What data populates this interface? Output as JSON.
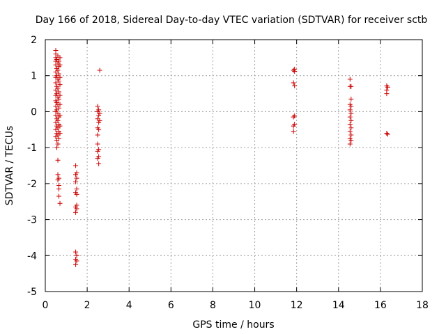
{
  "chart_data": {
    "type": "scatter",
    "title": "Day 166 of 2018, Sidereal Day-to-day VTEC variation (SDTVAR) for receiver sctb",
    "xlabel": "GPS time / hours",
    "ylabel": "SDTVAR / TECUs",
    "xlim": [
      0,
      18
    ],
    "ylim": [
      -5,
      2
    ],
    "xticks": [
      0,
      2,
      4,
      6,
      8,
      10,
      12,
      14,
      16,
      18
    ],
    "yticks": [
      -5,
      -4,
      -3,
      -2,
      -1,
      0,
      1,
      2
    ],
    "grid": true,
    "marker": "+",
    "colors": {
      "points": "#cc0000",
      "grid": "#a0a0a0",
      "axes": "#000000"
    },
    "series": [
      {
        "name": "SDTVAR",
        "points": [
          [
            0.5,
            1.7
          ],
          [
            0.5,
            1.6
          ],
          [
            0.5,
            1.5
          ],
          [
            0.5,
            1.4
          ],
          [
            0.5,
            1.3
          ],
          [
            0.5,
            1.1
          ],
          [
            0.5,
            0.95
          ],
          [
            0.5,
            0.8
          ],
          [
            0.5,
            0.6
          ],
          [
            0.5,
            0.45
          ],
          [
            0.5,
            0.3
          ],
          [
            0.5,
            0.15
          ],
          [
            0.5,
            0.0
          ],
          [
            0.5,
            -0.1
          ],
          [
            0.5,
            -0.3
          ],
          [
            0.5,
            -0.5
          ],
          [
            0.5,
            -0.7
          ],
          [
            0.55,
            1.45
          ],
          [
            0.55,
            1.2
          ],
          [
            0.55,
            1.0
          ],
          [
            0.55,
            0.7
          ],
          [
            0.55,
            0.5
          ],
          [
            0.55,
            0.25
          ],
          [
            0.55,
            0.05
          ],
          [
            0.55,
            -0.2
          ],
          [
            0.55,
            -0.4
          ],
          [
            0.55,
            -0.6
          ],
          [
            0.55,
            -0.8
          ],
          [
            0.55,
            -1.0
          ],
          [
            0.6,
            1.55
          ],
          [
            0.6,
            1.35
          ],
          [
            0.6,
            1.15
          ],
          [
            0.6,
            0.9
          ],
          [
            0.6,
            0.65
          ],
          [
            0.6,
            0.4
          ],
          [
            0.6,
            0.2
          ],
          [
            0.6,
            -0.05
          ],
          [
            0.6,
            -0.25
          ],
          [
            0.6,
            -0.45
          ],
          [
            0.6,
            -0.65
          ],
          [
            0.6,
            -0.9
          ],
          [
            0.6,
            -1.35
          ],
          [
            0.6,
            -1.75
          ],
          [
            0.6,
            -1.9
          ],
          [
            0.65,
            1.4
          ],
          [
            0.65,
            1.25
          ],
          [
            0.65,
            1.05
          ],
          [
            0.65,
            0.85
          ],
          [
            0.65,
            0.55
          ],
          [
            0.65,
            0.35
          ],
          [
            0.65,
            0.1
          ],
          [
            0.65,
            -0.15
          ],
          [
            0.65,
            -0.35
          ],
          [
            0.65,
            -0.55
          ],
          [
            0.65,
            -0.75
          ],
          [
            0.65,
            -1.85
          ],
          [
            0.65,
            -2.05
          ],
          [
            0.65,
            -2.15
          ],
          [
            0.65,
            -2.35
          ],
          [
            0.7,
            1.5
          ],
          [
            0.7,
            1.3
          ],
          [
            0.7,
            0.95
          ],
          [
            0.7,
            0.75
          ],
          [
            0.7,
            0.45
          ],
          [
            0.7,
            0.2
          ],
          [
            0.7,
            -0.1
          ],
          [
            0.7,
            -0.4
          ],
          [
            0.7,
            -0.6
          ],
          [
            0.7,
            -2.55
          ],
          [
            1.45,
            -1.5
          ],
          [
            1.45,
            -1.75
          ],
          [
            1.45,
            -1.95
          ],
          [
            1.45,
            -2.25
          ],
          [
            1.45,
            -2.65
          ],
          [
            1.45,
            -2.8
          ],
          [
            1.45,
            -3.9
          ],
          [
            1.45,
            -4.1
          ],
          [
            1.45,
            -4.25
          ],
          [
            1.5,
            -1.7
          ],
          [
            1.5,
            -1.85
          ],
          [
            1.5,
            -2.15
          ],
          [
            1.5,
            -2.3
          ],
          [
            1.5,
            -2.6
          ],
          [
            1.5,
            -2.7
          ],
          [
            1.5,
            -4.0
          ],
          [
            1.5,
            -4.15
          ],
          [
            2.5,
            0.15
          ],
          [
            2.5,
            0.0
          ],
          [
            2.5,
            -0.2
          ],
          [
            2.5,
            -0.45
          ],
          [
            2.5,
            -0.65
          ],
          [
            2.5,
            -0.9
          ],
          [
            2.5,
            -1.1
          ],
          [
            2.5,
            -1.3
          ],
          [
            2.55,
            0.05
          ],
          [
            2.55,
            -0.1
          ],
          [
            2.55,
            -0.3
          ],
          [
            2.55,
            -0.5
          ],
          [
            2.55,
            -1.05
          ],
          [
            2.55,
            -1.25
          ],
          [
            2.55,
            -1.45
          ],
          [
            2.6,
            1.15
          ],
          [
            2.6,
            -0.05
          ],
          [
            2.6,
            -0.25
          ],
          [
            11.85,
            1.15
          ],
          [
            11.85,
            0.8
          ],
          [
            11.85,
            -0.15
          ],
          [
            11.85,
            -0.4
          ],
          [
            11.85,
            -0.55
          ],
          [
            11.9,
            1.18
          ],
          [
            11.9,
            1.12
          ],
          [
            11.9,
            0.72
          ],
          [
            11.9,
            -0.12
          ],
          [
            11.9,
            -0.35
          ],
          [
            14.55,
            0.9
          ],
          [
            14.55,
            0.7
          ],
          [
            14.55,
            0.2
          ],
          [
            14.55,
            0.05
          ],
          [
            14.55,
            -0.15
          ],
          [
            14.55,
            -0.35
          ],
          [
            14.55,
            -0.55
          ],
          [
            14.55,
            -0.75
          ],
          [
            14.55,
            -0.9
          ],
          [
            14.6,
            0.7
          ],
          [
            14.6,
            0.35
          ],
          [
            14.6,
            0.15
          ],
          [
            14.6,
            -0.05
          ],
          [
            14.6,
            -0.25
          ],
          [
            14.6,
            -0.45
          ],
          [
            14.6,
            -0.65
          ],
          [
            14.6,
            -0.8
          ],
          [
            16.3,
            0.72
          ],
          [
            16.3,
            0.6
          ],
          [
            16.3,
            0.5
          ],
          [
            16.3,
            -0.6
          ],
          [
            16.35,
            0.68
          ],
          [
            16.35,
            -0.63
          ]
        ]
      }
    ]
  }
}
